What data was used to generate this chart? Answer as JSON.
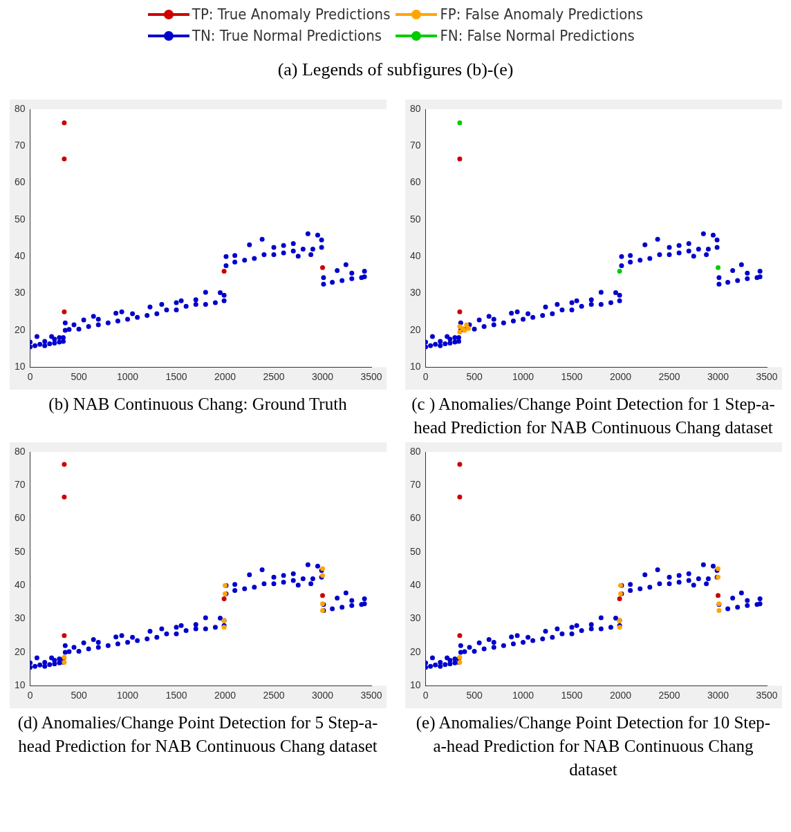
{
  "chart_data": [
    {
      "type": "scatter",
      "title": "(b) NAB Continuous Chang: Ground Truth",
      "legend": "top",
      "legend_title": "(a)  Legends of subfigures (b)-(e)",
      "marker": "circle",
      "xlim": [
        0,
        3500
      ],
      "xticks": [
        0,
        500,
        1000,
        1500,
        2000,
        2500,
        3000,
        3500
      ],
      "ylim": [
        10,
        80
      ],
      "yticks": [
        10,
        20,
        30,
        40,
        50,
        60,
        70,
        80
      ],
      "grid": false,
      "series": [
        {
          "name": "TP: True Anomaly Predictions",
          "color": "#cc0000",
          "x": [
            350,
            350,
            350,
            1990,
            3000
          ],
          "values": [
            76.3,
            66.5,
            25,
            36,
            37
          ]
        },
        {
          "name": "FP: False Anomaly Predictions",
          "color": "#ffa500"
        },
        {
          "name": "TN: True Normal Predictions",
          "color": "#0000cc",
          "x": [
            0,
            0,
            50,
            70,
            100,
            150,
            150,
            200,
            220,
            250,
            250,
            300,
            300,
            340,
            340,
            360,
            360,
            400,
            450,
            500,
            550,
            600,
            650,
            700,
            700,
            800,
            880,
            900,
            940,
            1000,
            1050,
            1100,
            1230,
            1200,
            1300,
            1350,
            1400,
            1500,
            1500,
            1550,
            1600,
            1700,
            1700,
            1800,
            1800,
            1900,
            1950,
            1990,
            1990,
            2010,
            2010,
            2100,
            2100,
            2200,
            2250,
            2300,
            2380,
            2400,
            2500,
            2500,
            2600,
            2600,
            2700,
            2700,
            2750,
            2800,
            2850,
            2880,
            2900,
            2950,
            2990,
            2990,
            3010,
            3010,
            3100,
            3150,
            3200,
            3240,
            3300,
            3300,
            3400,
            3430,
            3430
          ],
          "values": [
            15.5,
            16.8,
            15.8,
            18.3,
            16.2,
            15.8,
            17,
            16.3,
            18.3,
            16.5,
            17.6,
            16.8,
            18,
            17,
            18,
            20,
            22,
            20.2,
            21.5,
            20.3,
            22.8,
            21,
            23.8,
            21.5,
            23,
            22,
            24.6,
            22.5,
            25,
            23,
            24.5,
            23.5,
            26.3,
            24,
            24.5,
            27,
            25.5,
            25.5,
            27.5,
            28,
            26.5,
            27,
            28.3,
            30.3,
            27,
            27.5,
            30.2,
            28,
            29.5,
            37.5,
            40,
            38.5,
            40.3,
            39,
            43.2,
            39.5,
            44.7,
            40.5,
            40.5,
            42.5,
            41,
            43,
            41.5,
            43.5,
            40.1,
            42,
            46.2,
            40.5,
            42,
            45.8,
            42.5,
            44.5,
            32.5,
            34.3,
            33,
            36.2,
            33.5,
            37.8,
            34,
            35.5,
            34.3,
            36,
            34.5
          ]
        },
        {
          "name": "FN: False Normal Predictions",
          "color": "#00cc00"
        }
      ]
    },
    {
      "type": "scatter",
      "title": "(c ) Anomalies/Change Point Detection for 1 Step-a-head Prediction for NAB Continuous Chang dataset",
      "marker": "circle",
      "xlim": [
        0,
        3500
      ],
      "xticks": [
        0,
        500,
        1000,
        1500,
        2000,
        2500,
        3000,
        3500
      ],
      "ylim": [
        10,
        80
      ],
      "yticks": [
        10,
        20,
        30,
        40,
        50,
        60,
        70,
        80
      ],
      "grid": false,
      "series": [
        {
          "color": "#cc0000",
          "x": [
            350,
            350
          ],
          "values": [
            66.5,
            25
          ]
        },
        {
          "color": "#ffa500",
          "x": [
            350,
            350,
            380,
            400,
            420,
            440
          ],
          "values": [
            19.5,
            21,
            20.5,
            20,
            21.5,
            20.5
          ]
        },
        {
          "color": "#0000cc",
          "x": [
            0,
            0,
            50,
            70,
            100,
            150,
            150,
            200,
            220,
            250,
            250,
            300,
            300,
            340,
            340,
            360,
            360,
            400,
            450,
            500,
            550,
            600,
            650,
            700,
            700,
            800,
            880,
            900,
            940,
            1000,
            1050,
            1100,
            1230,
            1200,
            1300,
            1350,
            1400,
            1500,
            1500,
            1550,
            1600,
            1700,
            1700,
            1800,
            1800,
            1900,
            1950,
            1990,
            1990,
            2010,
            2010,
            2100,
            2100,
            2200,
            2250,
            2300,
            2380,
            2400,
            2500,
            2500,
            2600,
            2600,
            2700,
            2700,
            2750,
            2800,
            2850,
            2880,
            2900,
            2950,
            2990,
            2990,
            3010,
            3010,
            3100,
            3150,
            3200,
            3240,
            3300,
            3300,
            3400,
            3430,
            3430
          ],
          "values": [
            15.5,
            16.8,
            15.8,
            18.3,
            16.2,
            15.8,
            17,
            16.3,
            18.3,
            16.5,
            17.6,
            16.8,
            18,
            17,
            18,
            20,
            22,
            20.2,
            21.5,
            20.3,
            22.8,
            21,
            23.8,
            21.5,
            23,
            22,
            24.6,
            22.5,
            25,
            23,
            24.5,
            23.5,
            26.3,
            24,
            24.5,
            27,
            25.5,
            25.5,
            27.5,
            28,
            26.5,
            27,
            28.3,
            30.3,
            27,
            27.5,
            30.2,
            28,
            29.5,
            37.5,
            40,
            38.5,
            40.3,
            39,
            43.2,
            39.5,
            44.7,
            40.5,
            40.5,
            42.5,
            41,
            43,
            41.5,
            43.5,
            40.1,
            42,
            46.2,
            40.5,
            42,
            45.8,
            42.5,
            44.5,
            32.5,
            34.3,
            33,
            36.2,
            33.5,
            37.8,
            34,
            35.5,
            34.3,
            36,
            34.5
          ]
        },
        {
          "color": "#00cc00",
          "x": [
            350,
            1990,
            3000
          ],
          "values": [
            76.3,
            36,
            37
          ]
        }
      ]
    },
    {
      "type": "scatter",
      "title": "(d) Anomalies/Change Point Detection for 5 Step-a-head Prediction for NAB Continuous Chang dataset",
      "marker": "circle",
      "xlim": [
        0,
        3500
      ],
      "xticks": [
        0,
        500,
        1000,
        1500,
        2000,
        2500,
        3000,
        3500
      ],
      "ylim": [
        10,
        80
      ],
      "yticks": [
        10,
        20,
        30,
        40,
        50,
        60,
        70,
        80
      ],
      "grid": false,
      "series": [
        {
          "color": "#cc0000",
          "x": [
            350,
            350,
            350,
            1990,
            3000
          ],
          "values": [
            76.3,
            66.5,
            25,
            36,
            37
          ]
        },
        {
          "color": "#ffa500",
          "x": [
            350,
            350,
            1990,
            1990,
            2000,
            2000,
            3000,
            3000,
            3000,
            3000
          ],
          "values": [
            17,
            18.5,
            27.5,
            29.5,
            37.5,
            40,
            43,
            45,
            32.5,
            34.5
          ]
        },
        {
          "color": "#0000cc",
          "x": [
            0,
            0,
            50,
            70,
            100,
            150,
            150,
            200,
            220,
            250,
            250,
            300,
            300,
            340,
            340,
            360,
            360,
            400,
            450,
            500,
            550,
            600,
            650,
            700,
            700,
            800,
            880,
            900,
            940,
            1000,
            1050,
            1100,
            1230,
            1200,
            1300,
            1350,
            1400,
            1500,
            1500,
            1550,
            1600,
            1700,
            1700,
            1800,
            1800,
            1900,
            1950,
            1990,
            1990,
            2010,
            2010,
            2100,
            2100,
            2200,
            2250,
            2300,
            2380,
            2400,
            2500,
            2500,
            2600,
            2600,
            2700,
            2700,
            2750,
            2800,
            2850,
            2880,
            2900,
            2950,
            2990,
            2990,
            3010,
            3010,
            3100,
            3150,
            3200,
            3240,
            3300,
            3300,
            3400,
            3430,
            3430
          ],
          "values": [
            15.5,
            16.8,
            15.8,
            18.3,
            16.2,
            15.8,
            17,
            16.3,
            18.3,
            16.5,
            17.6,
            16.8,
            18,
            17,
            18,
            20,
            22,
            20.2,
            21.5,
            20.3,
            22.8,
            21,
            23.8,
            21.5,
            23,
            22,
            24.6,
            22.5,
            25,
            23,
            24.5,
            23.5,
            26.3,
            24,
            24.5,
            27,
            25.5,
            25.5,
            27.5,
            28,
            26.5,
            27,
            28.3,
            30.3,
            27,
            27.5,
            30.2,
            28,
            29.5,
            37.5,
            40,
            38.5,
            40.3,
            39,
            43.2,
            39.5,
            44.7,
            40.5,
            40.5,
            42.5,
            41,
            43,
            41.5,
            43.5,
            40.1,
            42,
            46.2,
            40.5,
            42,
            45.8,
            42.5,
            44.5,
            32.5,
            34.3,
            33,
            36.2,
            33.5,
            37.8,
            34,
            35.5,
            34.3,
            36,
            34.5
          ]
        },
        {
          "color": "#00cc00"
        }
      ]
    },
    {
      "type": "scatter",
      "title": "(e) Anomalies/Change Point Detection for 10 Step-a-head Prediction for NAB Continuous Chang dataset",
      "marker": "circle",
      "xlim": [
        0,
        3500
      ],
      "xticks": [
        0,
        500,
        1000,
        1500,
        2000,
        2500,
        3000,
        3500
      ],
      "ylim": [
        10,
        80
      ],
      "yticks": [
        10,
        20,
        30,
        40,
        50,
        60,
        70,
        80
      ],
      "grid": false,
      "series": [
        {
          "color": "#cc0000",
          "x": [
            350,
            350,
            350,
            1990,
            3000
          ],
          "values": [
            76.3,
            66.5,
            25,
            36,
            37
          ]
        },
        {
          "color": "#ffa500",
          "x": [
            350,
            350,
            1990,
            1990,
            2000,
            2000,
            3000,
            3000,
            3010,
            3010
          ],
          "values": [
            17,
            18.5,
            27.5,
            29.5,
            37.5,
            40,
            42.5,
            45,
            32.5,
            34.5
          ]
        },
        {
          "color": "#0000cc",
          "x": [
            0,
            0,
            50,
            70,
            100,
            150,
            150,
            200,
            220,
            250,
            250,
            300,
            300,
            340,
            340,
            360,
            360,
            400,
            450,
            500,
            550,
            600,
            650,
            700,
            700,
            800,
            880,
            900,
            940,
            1000,
            1050,
            1100,
            1230,
            1200,
            1300,
            1350,
            1400,
            1500,
            1500,
            1550,
            1600,
            1700,
            1700,
            1800,
            1800,
            1900,
            1950,
            1990,
            1990,
            2010,
            2010,
            2100,
            2100,
            2200,
            2250,
            2300,
            2380,
            2400,
            2500,
            2500,
            2600,
            2600,
            2700,
            2700,
            2750,
            2800,
            2850,
            2880,
            2900,
            2950,
            2990,
            2990,
            3010,
            3100,
            3150,
            3200,
            3240,
            3300,
            3300,
            3400,
            3430,
            3430
          ],
          "values": [
            15.5,
            16.8,
            15.8,
            18.3,
            16.2,
            15.8,
            17,
            16.3,
            18.3,
            16.5,
            17.6,
            16.8,
            18,
            17,
            18,
            20,
            22,
            20.2,
            21.5,
            20.3,
            22.8,
            21,
            23.8,
            21.5,
            23,
            22,
            24.6,
            22.5,
            25,
            23,
            24.5,
            23.5,
            26.3,
            24,
            24.5,
            27,
            25.5,
            25.5,
            27.5,
            28,
            26.5,
            27,
            28.3,
            30.3,
            27,
            27.5,
            30.2,
            28,
            29.5,
            37.5,
            40,
            38.5,
            40.3,
            39,
            43.2,
            39.5,
            44.7,
            40.5,
            40.5,
            42.5,
            41,
            43,
            41.5,
            43.5,
            40.1,
            42,
            46.2,
            40.5,
            42,
            45.8,
            42.5,
            44.5,
            34.3,
            33,
            36.2,
            33.5,
            37.8,
            34,
            35.5,
            34.3,
            36,
            34.5
          ]
        },
        {
          "color": "#00cc00"
        }
      ]
    }
  ]
}
